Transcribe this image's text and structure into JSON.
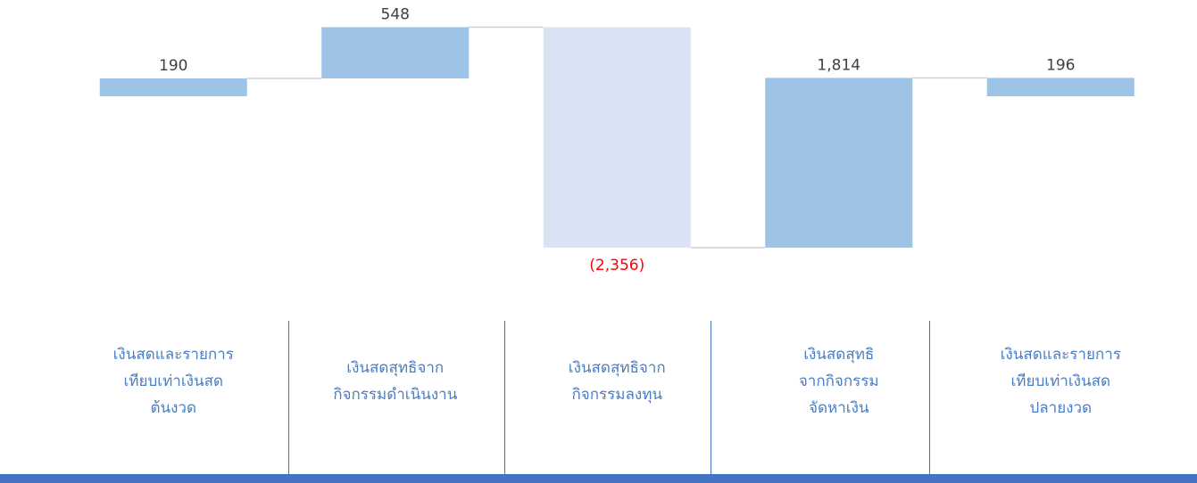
{
  "chart_data": {
    "type": "waterfall",
    "categories": [
      "เงินสดและรายการ\nเทียบเท่าเงินสด\nต้นงวด",
      "เงินสดสุทธิจาก\nกิจกรรมดำเนินงาน",
      "เงินสดสุทธิจาก\nกิจกรรมลงทุน",
      "เงินสดสุทธิ\nจากกิจกรรม\nจัดหาเงิน",
      "เงินสดและรายการ\nเทียบเท่าเงินสด\nปลายงวด"
    ],
    "values": [
      190,
      548,
      -2356,
      1814,
      196
    ],
    "value_labels": [
      "190",
      "548",
      "(2,356)",
      "1,814",
      "196"
    ],
    "colors": {
      "positive": "#9dc3e6",
      "negative": "#dae3f3",
      "negative_label": "#ff0000",
      "label": "#404040",
      "category": "#4a7ec2"
    }
  }
}
